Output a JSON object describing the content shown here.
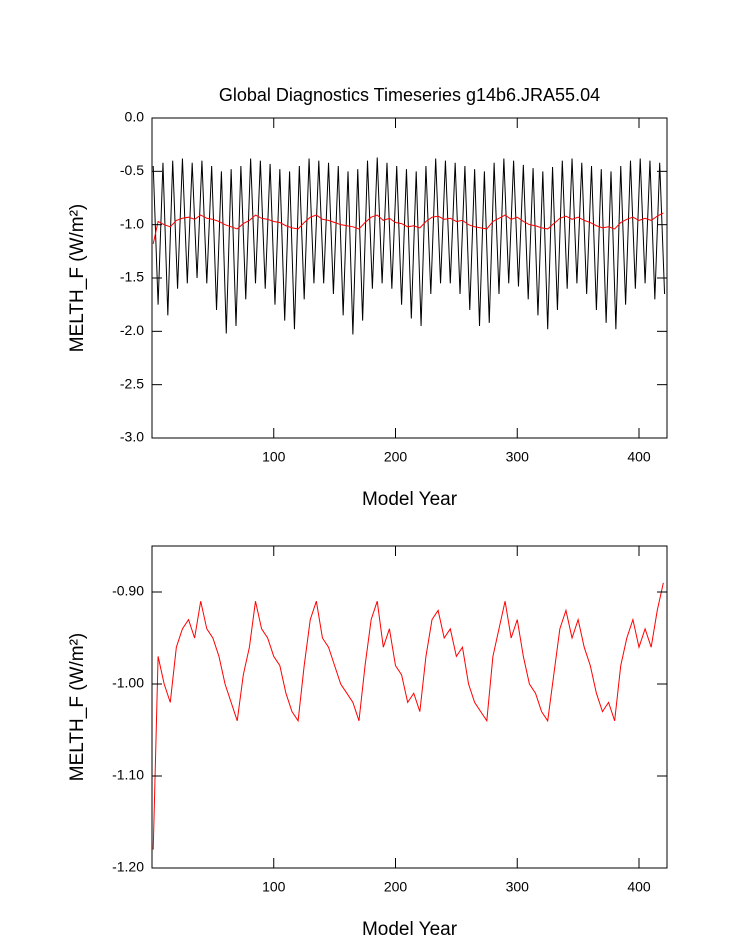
{
  "chart_data": [
    {
      "type": "line",
      "title": "Global Diagnostics Timeseries g14b6.JRA55.04",
      "x_label": "Model Year",
      "y_label": "MELTH_F (W/m²)",
      "xlim": [
        0,
        423
      ],
      "xticks": [
        100,
        200,
        300,
        400
      ],
      "ylim": [
        -3,
        0
      ],
      "yticks": [
        {
          "value": 0,
          "label": "0.0"
        },
        {
          "value": -0.5,
          "label": "-0.5"
        },
        {
          "value": -1,
          "label": "-1.0"
        },
        {
          "value": -1.5,
          "label": "-1.5"
        },
        {
          "value": -2,
          "label": "-2.0"
        },
        {
          "value": -2.5,
          "label": "-2.5"
        },
        {
          "value": -3,
          "label": "-3.0"
        }
      ],
      "series": [
        {
          "color": "#000000",
          "x": [
            1,
            5,
            9,
            13,
            17,
            21,
            25,
            29,
            33,
            37,
            41,
            45,
            49,
            53,
            57,
            61,
            65,
            69,
            73,
            77,
            81,
            85,
            89,
            93,
            97,
            101,
            105,
            109,
            113,
            117,
            121,
            125,
            129,
            133,
            137,
            141,
            145,
            149,
            153,
            157,
            161,
            165,
            169,
            173,
            177,
            181,
            185,
            189,
            193,
            197,
            201,
            205,
            209,
            213,
            217,
            221,
            225,
            229,
            233,
            237,
            241,
            245,
            249,
            253,
            257,
            261,
            265,
            269,
            273,
            277,
            281,
            285,
            289,
            293,
            297,
            301,
            305,
            309,
            313,
            317,
            321,
            325,
            329,
            333,
            337,
            341,
            345,
            349,
            353,
            357,
            361,
            365,
            369,
            373,
            377,
            381,
            385,
            389,
            393,
            397,
            401,
            405,
            409,
            413,
            417,
            421
          ],
          "values": [
            -0.45,
            -1.75,
            -0.42,
            -1.85,
            -0.4,
            -1.6,
            -0.38,
            -1.55,
            -0.42,
            -1.5,
            -0.4,
            -1.55,
            -0.45,
            -1.8,
            -0.5,
            -2.02,
            -0.48,
            -1.95,
            -0.45,
            -1.7,
            -0.38,
            -1.55,
            -0.4,
            -1.6,
            -0.43,
            -1.75,
            -0.48,
            -1.9,
            -0.5,
            -1.98,
            -0.45,
            -1.7,
            -0.38,
            -1.55,
            -0.4,
            -1.55,
            -0.42,
            -1.65,
            -0.45,
            -1.85,
            -0.5,
            -2.03,
            -0.48,
            -1.9,
            -0.4,
            -1.6,
            -0.37,
            -1.55,
            -0.42,
            -1.6,
            -0.45,
            -1.75,
            -0.48,
            -1.88,
            -0.5,
            -1.95,
            -0.45,
            -1.65,
            -0.38,
            -1.55,
            -0.4,
            -1.55,
            -0.42,
            -1.65,
            -0.45,
            -1.8,
            -0.48,
            -1.95,
            -0.5,
            -1.92,
            -0.42,
            -1.65,
            -0.38,
            -1.55,
            -0.4,
            -1.58,
            -0.44,
            -1.7,
            -0.47,
            -1.85,
            -0.5,
            -1.98,
            -0.46,
            -1.8,
            -0.4,
            -1.6,
            -0.38,
            -1.55,
            -0.42,
            -1.65,
            -0.45,
            -1.8,
            -0.48,
            -1.92,
            -0.5,
            -1.98,
            -0.45,
            -1.75,
            -0.4,
            -1.6,
            -0.38,
            -1.55,
            -0.4,
            -1.7,
            -0.42,
            -1.65
          ]
        },
        {
          "color": "#ff0000",
          "x": [
            1,
            5,
            10,
            15,
            20,
            25,
            30,
            35,
            40,
            45,
            50,
            55,
            60,
            65,
            70,
            75,
            80,
            85,
            90,
            95,
            100,
            105,
            110,
            115,
            120,
            125,
            130,
            135,
            140,
            145,
            150,
            155,
            160,
            165,
            170,
            175,
            180,
            185,
            190,
            195,
            200,
            205,
            210,
            215,
            220,
            225,
            230,
            235,
            240,
            245,
            250,
            255,
            260,
            265,
            270,
            275,
            280,
            285,
            290,
            295,
            300,
            305,
            310,
            315,
            320,
            325,
            330,
            335,
            340,
            345,
            350,
            355,
            360,
            365,
            370,
            375,
            380,
            385,
            390,
            395,
            400,
            405,
            410,
            415,
            420
          ],
          "values": [
            -1.18,
            -0.97,
            -1.0,
            -1.02,
            -0.96,
            -0.94,
            -0.93,
            -0.95,
            -0.91,
            -0.94,
            -0.95,
            -0.97,
            -1.0,
            -1.02,
            -1.04,
            -0.99,
            -0.96,
            -0.91,
            -0.94,
            -0.95,
            -0.97,
            -0.98,
            -1.01,
            -1.03,
            -1.04,
            -0.98,
            -0.93,
            -0.91,
            -0.95,
            -0.96,
            -0.98,
            -1.0,
            -1.01,
            -1.02,
            -1.04,
            -0.98,
            -0.93,
            -0.91,
            -0.96,
            -0.94,
            -0.98,
            -0.99,
            -1.02,
            -1.01,
            -1.03,
            -0.97,
            -0.93,
            -0.92,
            -0.95,
            -0.94,
            -0.97,
            -0.96,
            -1.0,
            -1.02,
            -1.03,
            -1.04,
            -0.97,
            -0.94,
            -0.91,
            -0.95,
            -0.93,
            -0.97,
            -1.0,
            -1.01,
            -1.03,
            -1.04,
            -0.99,
            -0.94,
            -0.92,
            -0.95,
            -0.93,
            -0.96,
            -0.98,
            -1.01,
            -1.03,
            -1.02,
            -1.04,
            -0.98,
            -0.95,
            -0.93,
            -0.96,
            -0.94,
            -0.96,
            -0.92,
            -0.89
          ]
        }
      ]
    },
    {
      "type": "line",
      "x_label": "Model Year",
      "y_label": "MELTH_F (W/m²)",
      "xlim": [
        0,
        423
      ],
      "xticks": [
        100,
        200,
        300,
        400
      ],
      "ylim": [
        -1.2,
        -0.85
      ],
      "yticks": [
        {
          "value": -0.9,
          "label": "-0.90"
        },
        {
          "value": -1,
          "label": "-1.00"
        },
        {
          "value": -1.1,
          "label": "-1.10"
        },
        {
          "value": -1.2,
          "label": "-1.20"
        }
      ],
      "series": [
        {
          "color": "#ff0000",
          "x": [
            1,
            5,
            10,
            15,
            20,
            25,
            30,
            35,
            40,
            45,
            50,
            55,
            60,
            65,
            70,
            75,
            80,
            85,
            90,
            95,
            100,
            105,
            110,
            115,
            120,
            125,
            130,
            135,
            140,
            145,
            150,
            155,
            160,
            165,
            170,
            175,
            180,
            185,
            190,
            195,
            200,
            205,
            210,
            215,
            220,
            225,
            230,
            235,
            240,
            245,
            250,
            255,
            260,
            265,
            270,
            275,
            280,
            285,
            290,
            295,
            300,
            305,
            310,
            315,
            320,
            325,
            330,
            335,
            340,
            345,
            350,
            355,
            360,
            365,
            370,
            375,
            380,
            385,
            390,
            395,
            400,
            405,
            410,
            415,
            420
          ],
          "values": [
            -1.18,
            -0.97,
            -1.0,
            -1.02,
            -0.96,
            -0.94,
            -0.93,
            -0.95,
            -0.91,
            -0.94,
            -0.95,
            -0.97,
            -1.0,
            -1.02,
            -1.04,
            -0.99,
            -0.96,
            -0.91,
            -0.94,
            -0.95,
            -0.97,
            -0.98,
            -1.01,
            -1.03,
            -1.04,
            -0.98,
            -0.93,
            -0.91,
            -0.95,
            -0.96,
            -0.98,
            -1.0,
            -1.01,
            -1.02,
            -1.04,
            -0.98,
            -0.93,
            -0.91,
            -0.96,
            -0.94,
            -0.98,
            -0.99,
            -1.02,
            -1.01,
            -1.03,
            -0.97,
            -0.93,
            -0.92,
            -0.95,
            -0.94,
            -0.97,
            -0.96,
            -1.0,
            -1.02,
            -1.03,
            -1.04,
            -0.97,
            -0.94,
            -0.91,
            -0.95,
            -0.93,
            -0.97,
            -1.0,
            -1.01,
            -1.03,
            -1.04,
            -0.99,
            -0.94,
            -0.92,
            -0.95,
            -0.93,
            -0.96,
            -0.98,
            -1.01,
            -1.03,
            -1.02,
            -1.04,
            -0.98,
            -0.95,
            -0.93,
            -0.96,
            -0.94,
            -0.96,
            -0.92,
            -0.89
          ]
        }
      ]
    }
  ]
}
